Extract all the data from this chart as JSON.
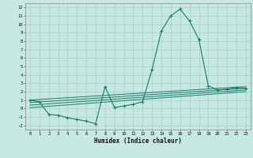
{
  "title": "",
  "xlabel": "Humidex (Indice chaleur)",
  "background_color": "#c5e8e0",
  "grid_color": "#a8cfc8",
  "line_color": "#1a7a6a",
  "xlim": [
    -0.5,
    23.5
  ],
  "ylim": [
    -2.5,
    12.5
  ],
  "xticks": [
    0,
    1,
    2,
    3,
    4,
    5,
    6,
    7,
    8,
    9,
    10,
    11,
    12,
    13,
    14,
    15,
    16,
    17,
    18,
    19,
    20,
    21,
    22,
    23
  ],
  "yticks": [
    -2,
    -1,
    0,
    1,
    2,
    3,
    4,
    5,
    6,
    7,
    8,
    9,
    10,
    11,
    12
  ],
  "series": [
    [
      0,
      1.0
    ],
    [
      1,
      0.8
    ],
    [
      2,
      -0.7
    ],
    [
      3,
      -0.8
    ],
    [
      4,
      -1.1
    ],
    [
      5,
      -1.3
    ],
    [
      6,
      -1.5
    ],
    [
      7,
      -1.8
    ],
    [
      8,
      2.6
    ],
    [
      9,
      0.1
    ],
    [
      10,
      0.3
    ],
    [
      11,
      0.5
    ],
    [
      12,
      0.8
    ],
    [
      13,
      4.6
    ],
    [
      14,
      9.2
    ],
    [
      15,
      11.0
    ],
    [
      16,
      11.8
    ],
    [
      17,
      10.4
    ],
    [
      18,
      8.2
    ],
    [
      19,
      2.7
    ],
    [
      20,
      2.2
    ],
    [
      21,
      2.3
    ],
    [
      22,
      2.5
    ],
    [
      23,
      2.4
    ]
  ],
  "straight_lines": [
    [
      [
        0,
        1.0
      ],
      [
        23,
        2.6
      ]
    ],
    [
      [
        0,
        0.7
      ],
      [
        23,
        2.4
      ]
    ],
    [
      [
        0,
        0.4
      ],
      [
        23,
        2.2
      ]
    ],
    [
      [
        0,
        0.1
      ],
      [
        23,
        2.0
      ]
    ]
  ]
}
